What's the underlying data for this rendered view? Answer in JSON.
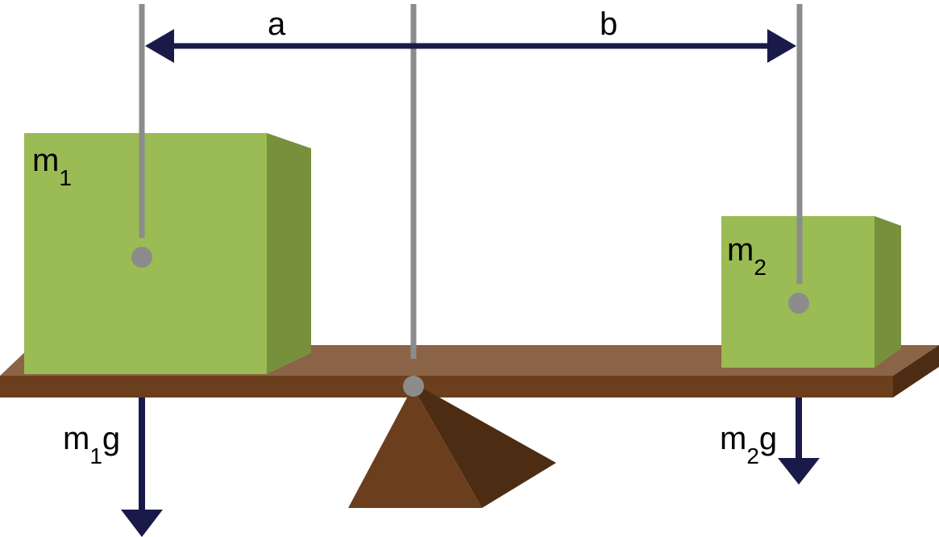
{
  "labels": {
    "a": "a",
    "b": "b",
    "m1": "m",
    "m1_sub": "1",
    "m2": "m",
    "m2_sub": "2",
    "force1_m": "m",
    "force1_sub": "1",
    "force1_g": "g",
    "force2_m": "m",
    "force2_sub": "2",
    "force2_g": "g"
  },
  "colors": {
    "block_front": "#9bbb54",
    "block_side": "#77903c",
    "plank_top": "#8b6347",
    "plank_front": "#6b3e1d",
    "plank_side": "#4d2c14",
    "fulcrum_front": "#6b3e1d",
    "fulcrum_side": "#4d2c14",
    "rod": "#8c8c8c",
    "arrow": "#1a1a4a"
  }
}
